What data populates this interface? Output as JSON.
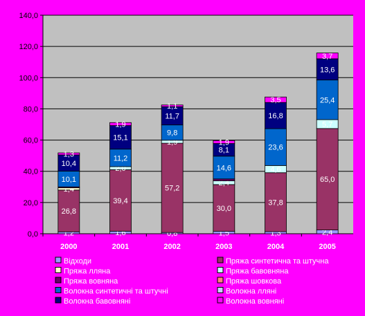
{
  "chart_data": {
    "type": "bar",
    "stacked": true,
    "categories": [
      "2000",
      "2001",
      "2002",
      "2003",
      "2004",
      "2005"
    ],
    "ylim": [
      0,
      140
    ],
    "yticks": [
      "0,0",
      "20,0",
      "40,0",
      "60,0",
      "80,0",
      "100,0",
      "120,0",
      "140,0"
    ],
    "grid": true,
    "legend_position": "bottom",
    "series": [
      {
        "name": "Відходи",
        "color": "#9999FF",
        "values": [
          1.2,
          1.6,
          0.8,
          1.5,
          1.3,
          2.4
        ],
        "labels": [
          "1,2",
          "1,6",
          "0,8",
          "1,5",
          "1,3",
          "2,4"
        ]
      },
      {
        "name": "Пряжа синтетична та штучна",
        "color": "#993366",
        "values": [
          26.8,
          39.4,
          57.2,
          30.0,
          37.8,
          65.0
        ],
        "labels": [
          "26,8",
          "39,4",
          "57,2",
          "30,0",
          "37,8",
          "65,0"
        ]
      },
      {
        "name": "Пряжа лляна",
        "color": "#FFFFCC",
        "values": [
          1.4,
          0,
          0,
          0,
          0,
          0
        ],
        "labels": [
          "1,4",
          "",
          "",
          "",
          "",
          ""
        ]
      },
      {
        "name": "Пряжа бавовняна",
        "color": "#CCFFFF",
        "values": [
          0,
          2.0,
          1.9,
          2.4,
          4.6,
          5.7
        ],
        "labels": [
          "",
          "2,0",
          "1,9",
          "2,4",
          "4,6",
          "5,7"
        ]
      },
      {
        "name": "Пряжа вовняна",
        "color": "#660066",
        "values": [
          0.6,
          0,
          0,
          1.2,
          0,
          0
        ],
        "labels": [
          "",
          "",
          "",
          "",
          "",
          ""
        ]
      },
      {
        "name": "Пряжа шовкова",
        "color": "#FF8080",
        "values": [
          0,
          0,
          0,
          0,
          0,
          0
        ],
        "labels": [
          "",
          "",
          "",
          "",
          "",
          ""
        ]
      },
      {
        "name": "Волокна синтетичні та штучні",
        "color": "#0066CC",
        "values": [
          10.1,
          11.2,
          9.8,
          14.6,
          23.6,
          25.4
        ],
        "labels": [
          "10,1",
          "11,2",
          "9,8",
          "14,6",
          "23,6",
          "25,4"
        ]
      },
      {
        "name": "Волокна лляні",
        "color": "#CCCCFF",
        "values": [
          0,
          0,
          0,
          0,
          0,
          0
        ],
        "labels": [
          "",
          "",
          "",
          "",
          "",
          ""
        ]
      },
      {
        "name": "Волокна бавовняні",
        "color": "#000080",
        "values": [
          10.4,
          15.1,
          11.7,
          8.1,
          16.8,
          13.6
        ],
        "labels": [
          "10,4",
          "15,1",
          "11,7",
          "8,1",
          "16,8",
          "13,6"
        ]
      },
      {
        "name": "Волокна вовняні",
        "color": "#FF00FF",
        "values": [
          1.3,
          1.9,
          1.1,
          1.9,
          3.5,
          3.7
        ],
        "labels": [
          "1,3",
          "1,9",
          "1,1",
          "1,9",
          "3,5",
          "3,7"
        ]
      }
    ]
  }
}
